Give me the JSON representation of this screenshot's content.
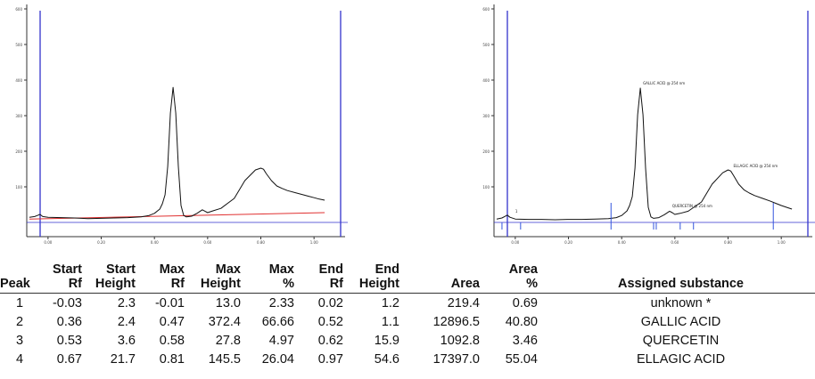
{
  "chart_data": [
    {
      "type": "line",
      "title": "",
      "xlabel": "",
      "ylabel": "",
      "xlim": [
        -0.08,
        1.1
      ],
      "ylim": [
        0,
        600
      ],
      "x_ticks": [
        "0.00",
        "0.20",
        "0.40",
        "0.60",
        "0.80",
        "1.00"
      ],
      "y_ticks": [
        "100",
        "200",
        "300",
        "400",
        "500",
        "600"
      ],
      "series": [
        {
          "x": [
            -0.07,
            -0.05,
            -0.04,
            -0.03,
            -0.02,
            0.0,
            0.05,
            0.1,
            0.15,
            0.2,
            0.25,
            0.3,
            0.35,
            0.38,
            0.4,
            0.42,
            0.43,
            0.44,
            0.45,
            0.46,
            0.47,
            0.48,
            0.49,
            0.5,
            0.51,
            0.52,
            0.54,
            0.56,
            0.58,
            0.59,
            0.6,
            0.62,
            0.65,
            0.7,
            0.74,
            0.78,
            0.8,
            0.81,
            0.82,
            0.84,
            0.86,
            0.88,
            0.9,
            0.93,
            0.96,
            0.98,
            1.0,
            1.02,
            1.04
          ],
          "y": [
            7,
            9,
            12,
            15,
            9,
            7,
            6,
            5,
            3,
            4,
            5,
            6,
            8,
            12,
            18,
            30,
            45,
            70,
            150,
            300,
            372,
            300,
            150,
            40,
            12,
            8,
            10,
            18,
            28,
            24,
            20,
            25,
            32,
            60,
            110,
            140,
            145,
            142,
            130,
            110,
            95,
            88,
            82,
            76,
            70,
            66,
            62,
            58,
            55
          ]
        }
      ],
      "baseline": {
        "x": [
          -0.07,
          1.04
        ],
        "y": [
          2,
          20
        ]
      }
    },
    {
      "type": "line",
      "title": "",
      "xlabel": "",
      "ylabel": "",
      "xlim": [
        -0.08,
        1.1
      ],
      "ylim": [
        0,
        600
      ],
      "x_ticks": [
        "0.00",
        "0.20",
        "0.40",
        "0.60",
        "0.80",
        "1.00"
      ],
      "y_ticks": [
        "100",
        "200",
        "300",
        "400",
        "500",
        "600"
      ],
      "series": [
        {
          "x": [
            -0.07,
            -0.05,
            -0.04,
            -0.03,
            -0.02,
            0.0,
            0.05,
            0.1,
            0.15,
            0.2,
            0.25,
            0.3,
            0.35,
            0.38,
            0.4,
            0.42,
            0.43,
            0.44,
            0.45,
            0.46,
            0.47,
            0.48,
            0.49,
            0.5,
            0.51,
            0.52,
            0.54,
            0.56,
            0.58,
            0.59,
            0.6,
            0.62,
            0.65,
            0.7,
            0.74,
            0.78,
            0.8,
            0.81,
            0.82,
            0.84,
            0.86,
            0.88,
            0.9,
            0.93,
            0.96,
            0.98,
            1.0,
            1.02,
            1.04
          ],
          "y": [
            2,
            5,
            9,
            13,
            7,
            2,
            1,
            1,
            0,
            1,
            1,
            2,
            3,
            6,
            12,
            25,
            40,
            65,
            145,
            295,
            370,
            295,
            145,
            35,
            8,
            4,
            6,
            14,
            24,
            20,
            15,
            18,
            24,
            50,
            100,
            132,
            140,
            137,
            125,
            100,
            84,
            75,
            68,
            60,
            52,
            46,
            40,
            35,
            30
          ]
        }
      ],
      "peak_labels": [
        {
          "text": "GALLIC ACID @ 254 nm",
          "x": 0.47,
          "y": 372
        },
        {
          "text": "QUERCETIN @ 254 nm",
          "x": 0.58,
          "y": 28
        },
        {
          "text": "ELLAGIC ACID @ 254 nm",
          "x": 0.81,
          "y": 140
        },
        {
          "text": "1",
          "x": -0.01,
          "y": 13
        }
      ],
      "peak_markers": {
        "short": [
          -0.05,
          0.02,
          0.52,
          0.53,
          0.62,
          0.67
        ],
        "tall": [
          0.36,
          0.97
        ]
      }
    }
  ],
  "table": {
    "headers": [
      [
        "Peak"
      ],
      [
        "Start",
        "Rf"
      ],
      [
        "Start",
        "Height"
      ],
      [
        "Max",
        "Rf"
      ],
      [
        "Max",
        "Height"
      ],
      [
        "Max",
        "%"
      ],
      [
        "End",
        "Rf"
      ],
      [
        "End",
        "Height"
      ],
      [
        "Area"
      ],
      [
        "Area",
        "%"
      ],
      [
        "Assigned substance"
      ]
    ],
    "rows": [
      [
        "1",
        "-0.03",
        "2.3",
        "-0.01",
        "13.0",
        "2.33",
        "0.02",
        "1.2",
        "219.4",
        "0.69",
        "unknown *"
      ],
      [
        "2",
        "0.36",
        "2.4",
        "0.47",
        "372.4",
        "66.66",
        "0.52",
        "1.1",
        "12896.5",
        "40.80",
        "GALLIC ACID"
      ],
      [
        "3",
        "0.53",
        "3.6",
        "0.58",
        "27.8",
        "4.97",
        "0.62",
        "15.9",
        "1092.8",
        "3.46",
        "QUERCETIN"
      ],
      [
        "4",
        "0.67",
        "21.7",
        "0.81",
        "145.5",
        "26.04",
        "0.97",
        "54.6",
        "17397.0",
        "55.04",
        "ELLAGIC ACID"
      ]
    ]
  },
  "colors": {
    "trace": "#111111",
    "frame": "#3333cc",
    "baseline": "#e03030",
    "marker": "#3355dd",
    "axis": "#333333"
  }
}
